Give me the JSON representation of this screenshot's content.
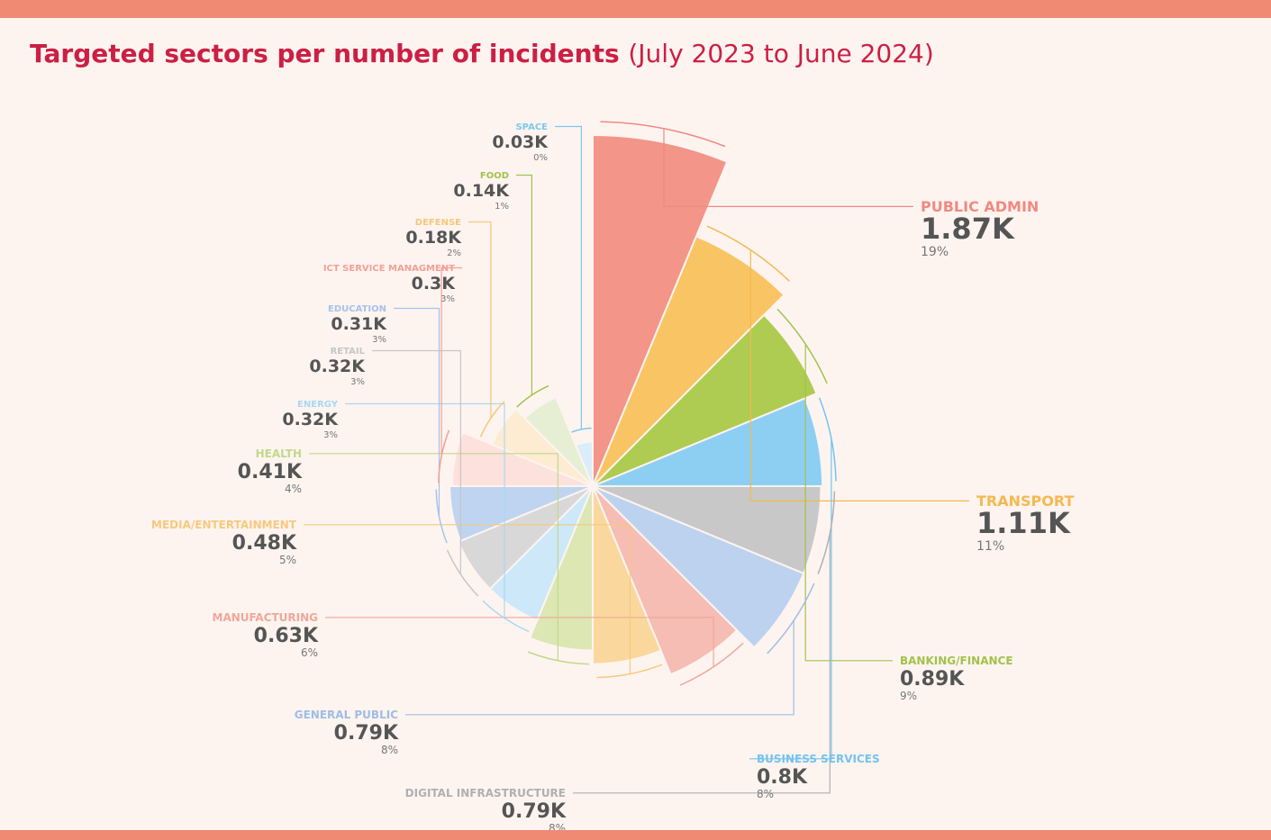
{
  "title": {
    "main": "Targeted sectors per number of incidents",
    "sub": "(July 2023 to June 2024)"
  },
  "colors": {
    "band": "#f08a72",
    "title": "#cc1f44",
    "value_text": "#555555",
    "percent_text": "#777777",
    "background": "#fdf4f0"
  },
  "chart_data": {
    "type": "pie",
    "variant": "rose (radius proportional to value)",
    "title": "Targeted sectors per number of incidents",
    "subtitle": "(July 2023 to June 2024)",
    "unit": "K incidents",
    "slices": [
      {
        "name": "PUBLIC ADMIN",
        "value": 1.87,
        "value_label": "1.87K",
        "percent": "19%",
        "color": "#f39589",
        "label_color": "#f08a82"
      },
      {
        "name": "TRANSPORT",
        "value": 1.11,
        "value_label": "1.11K",
        "percent": "11%",
        "color": "#f9c463",
        "label_color": "#f5b94f"
      },
      {
        "name": "BANKING/FINANCE",
        "value": 0.89,
        "value_label": "0.89K",
        "percent": "9%",
        "color": "#aecb52",
        "label_color": "#a2c24a"
      },
      {
        "name": "BUSINESS SERVICES",
        "value": 0.8,
        "value_label": "0.8K",
        "percent": "8%",
        "color": "#8dcff3",
        "label_color": "#73c3ee"
      },
      {
        "name": "DIGITAL INFRASTRUCTURE",
        "value": 0.79,
        "value_label": "0.79K",
        "percent": "8%",
        "color": "#c8c8c8",
        "label_color": "#b0b0b0"
      },
      {
        "name": "GENERAL PUBLIC",
        "value": 0.79,
        "value_label": "0.79K",
        "percent": "8%",
        "color": "#bcd2ef",
        "label_color": "#9fbde6"
      },
      {
        "name": "MANUFACTURING",
        "value": 0.63,
        "value_label": "0.63K",
        "percent": "6%",
        "color": "#f5bdb3",
        "label_color": "#f2a69a"
      },
      {
        "name": "MEDIA/ENTERTAINMENT",
        "value": 0.48,
        "value_label": "0.48K",
        "percent": "5%",
        "color": "#fad89d",
        "label_color": "#f6c97e"
      },
      {
        "name": "HEALTH",
        "value": 0.41,
        "value_label": "0.41K",
        "percent": "4%",
        "color": "#dce7b4",
        "label_color": "#c2d88a"
      },
      {
        "name": "ENERGY",
        "value": 0.32,
        "value_label": "0.32K",
        "percent": "3%",
        "color": "#cde8f8",
        "label_color": "#a8d8f4"
      },
      {
        "name": "RETAIL",
        "value": 0.32,
        "value_label": "0.32K",
        "percent": "3%",
        "color": "#d8d8d8",
        "label_color": "#c6c6c6"
      },
      {
        "name": "EDUCATION",
        "value": 0.31,
        "value_label": "0.31K",
        "percent": "3%",
        "color": "#bfd4f0",
        "label_color": "#a7c2ea"
      },
      {
        "name": "ICT SERVICE MANAGMENT",
        "value": 0.3,
        "value_label": "0.3K",
        "percent": "3%",
        "color": "#fde1dd",
        "label_color": "#f2a095"
      },
      {
        "name": "DEFENSE",
        "value": 0.18,
        "value_label": "0.18K",
        "percent": "2%",
        "color": "#fdebd2",
        "label_color": "#f5c77a"
      },
      {
        "name": "FOOD",
        "value": 0.14,
        "value_label": "0.14K",
        "percent": "1%",
        "color": "#e6efd3",
        "label_color": "#a2c24a"
      },
      {
        "name": "SPACE",
        "value": 0.03,
        "value_label": "0.03K",
        "percent": "0%",
        "color": "#d9eefa",
        "label_color": "#7ec8ee"
      }
    ]
  }
}
